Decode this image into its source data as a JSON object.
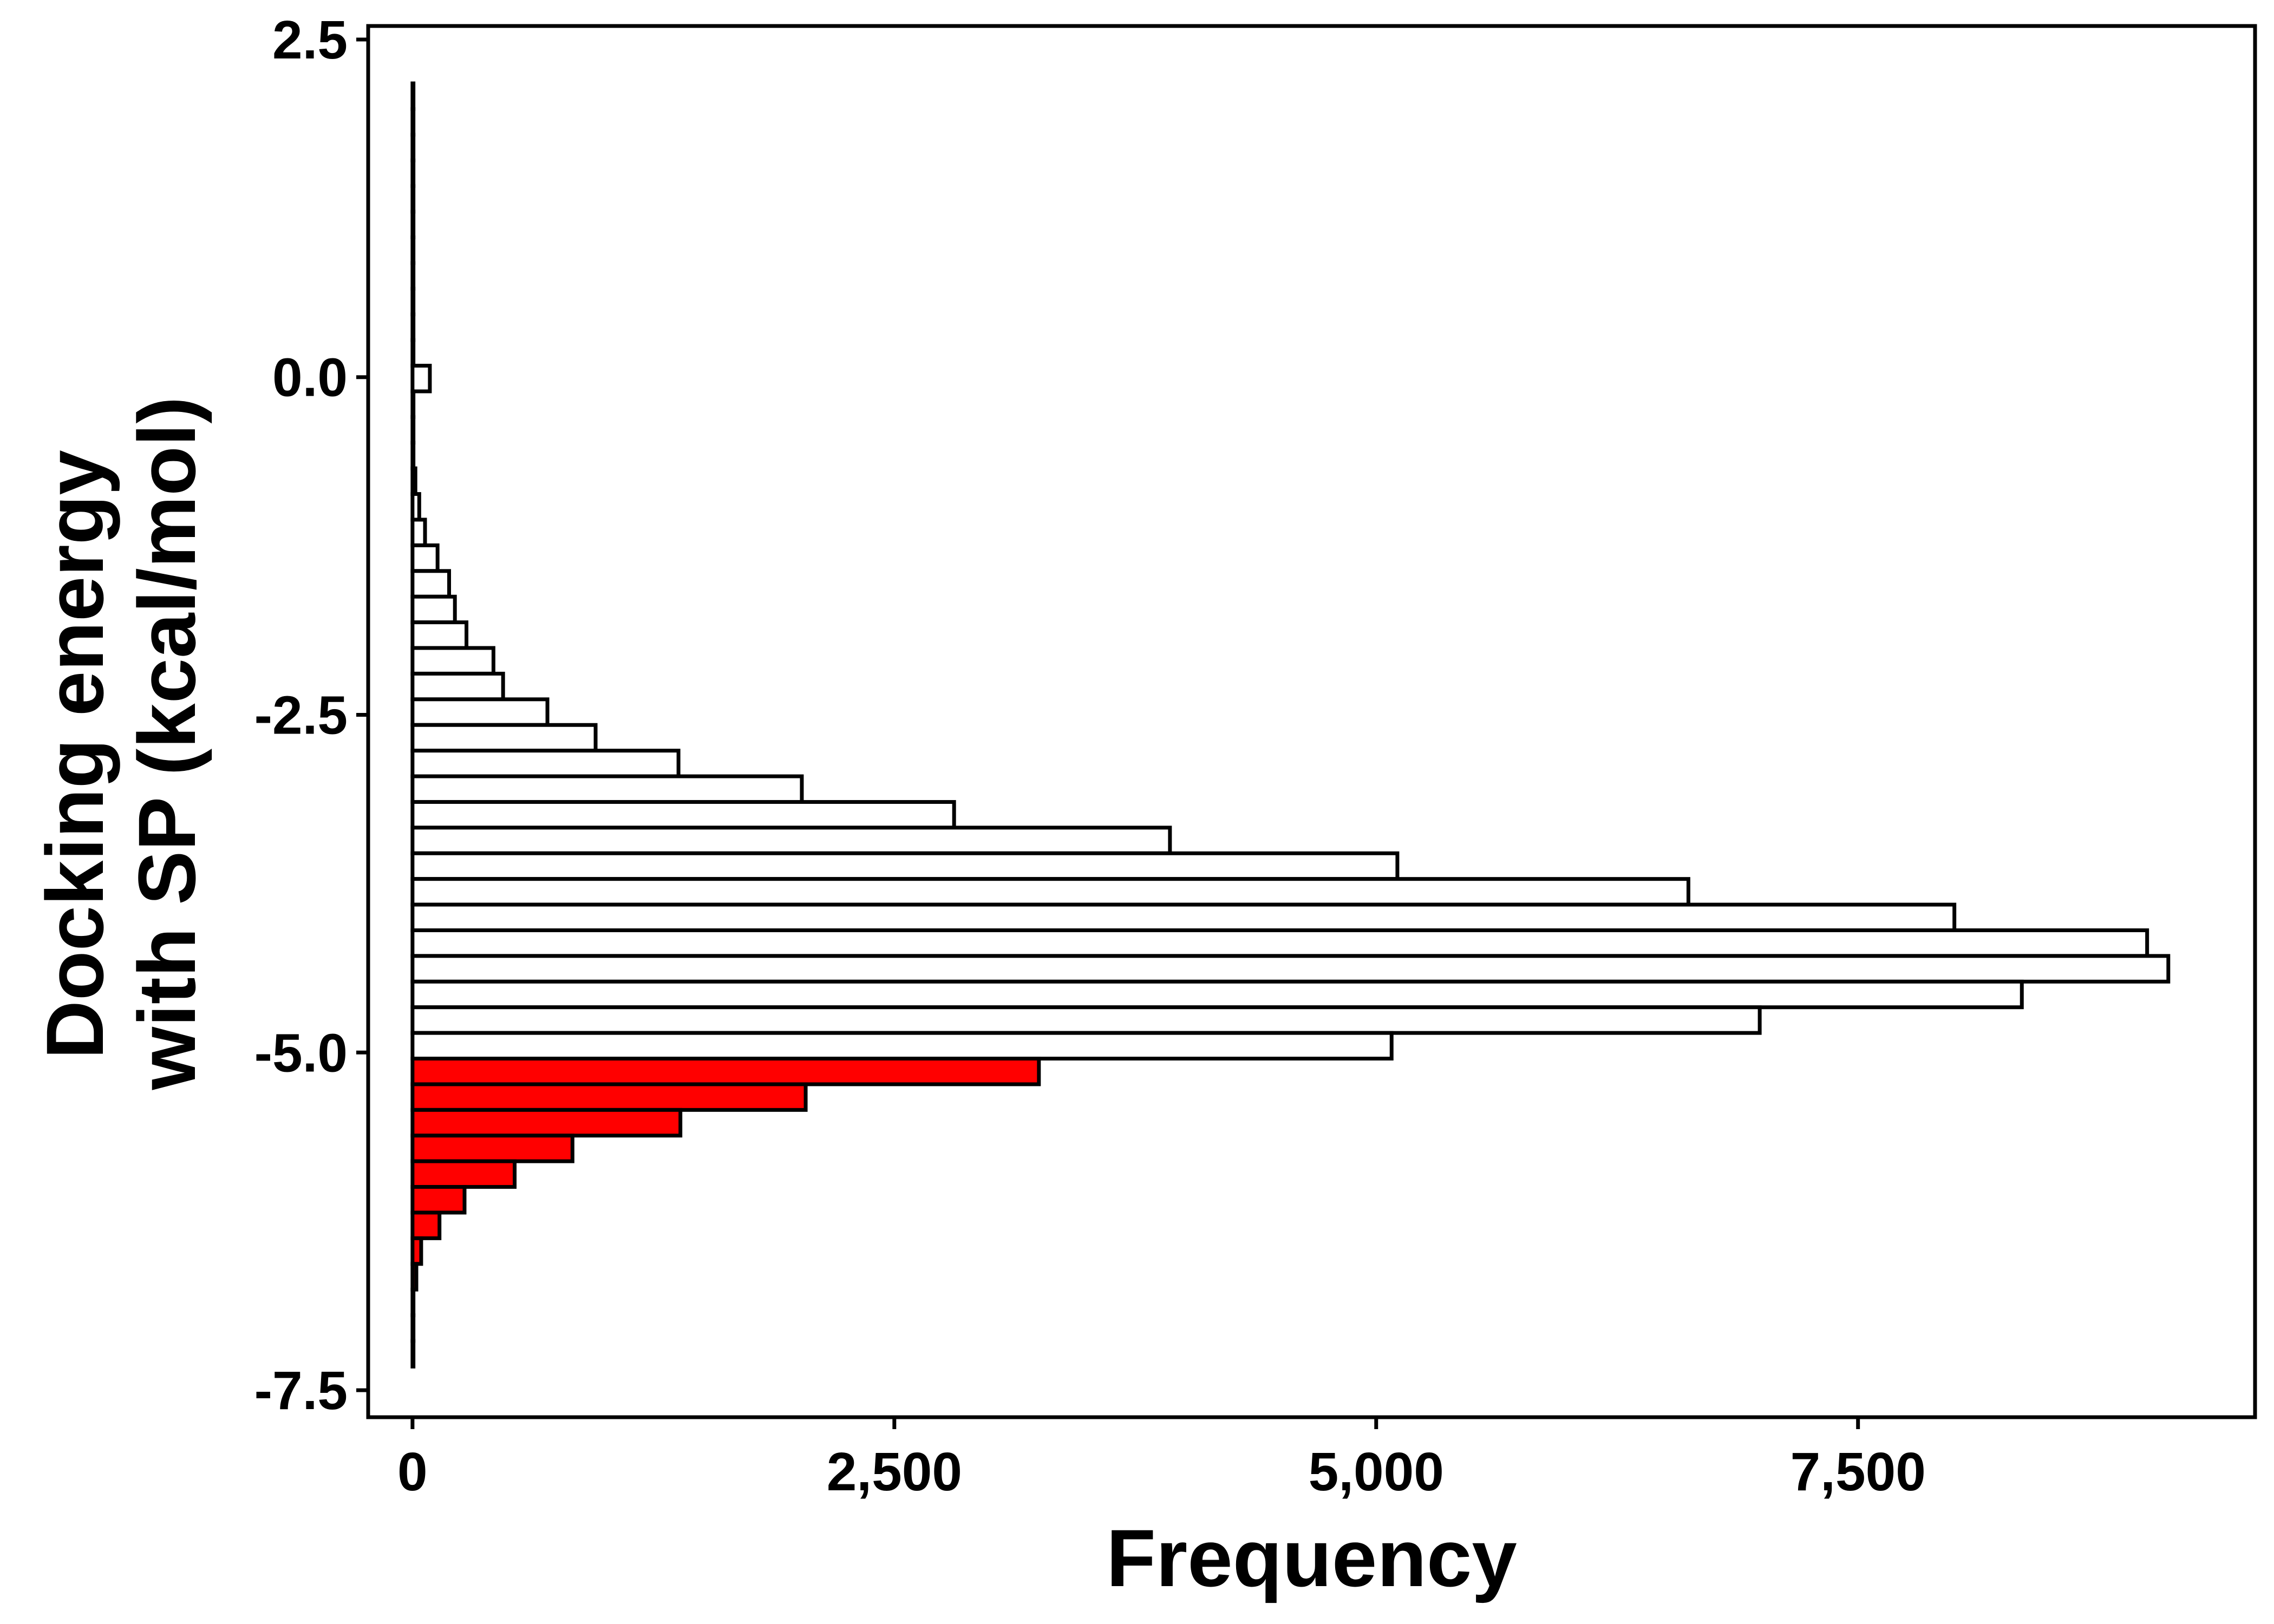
{
  "chart_data": {
    "type": "bar",
    "orientation": "horizontal",
    "xlabel": "Frequency",
    "ylabel_lines": [
      "Docking energy",
      "with SP (kcal/mol)"
    ],
    "xlim": [
      -230,
      9560
    ],
    "ylim": [
      -7.7,
      2.6
    ],
    "xticks": [
      0,
      2500,
      5000,
      7500
    ],
    "xtick_labels": [
      "0",
      "2,500",
      "5,000",
      "7,500"
    ],
    "yticks": [
      2.5,
      0.0,
      -2.5,
      -5.0,
      -7.5
    ],
    "ytick_labels": [
      "2.5",
      "0.0",
      "-2.5",
      "-5.0",
      "-7.5"
    ],
    "bin_width": 0.19,
    "highlight_threshold": -5.0,
    "colors": {
      "normal": "#ffffff",
      "highlight": "#ff0000",
      "stroke": "#000000"
    },
    "bins": [
      {
        "y": 2.08,
        "value": 5
      },
      {
        "y": 1.89,
        "value": 5
      },
      {
        "y": 1.7,
        "value": 5
      },
      {
        "y": 1.51,
        "value": 5
      },
      {
        "y": 1.32,
        "value": 5
      },
      {
        "y": 1.13,
        "value": 5
      },
      {
        "y": 0.94,
        "value": 5
      },
      {
        "y": 0.75,
        "value": 5
      },
      {
        "y": 0.56,
        "value": 5
      },
      {
        "y": 0.37,
        "value": 5
      },
      {
        "y": 0.18,
        "value": 5
      },
      {
        "y": -0.01,
        "value": 90
      },
      {
        "y": -0.2,
        "value": 5
      },
      {
        "y": -0.39,
        "value": 5
      },
      {
        "y": -0.58,
        "value": 5
      },
      {
        "y": -0.77,
        "value": 15
      },
      {
        "y": -0.96,
        "value": 35
      },
      {
        "y": -1.15,
        "value": 65
      },
      {
        "y": -1.34,
        "value": 130
      },
      {
        "y": -1.53,
        "value": 190
      },
      {
        "y": -1.72,
        "value": 220
      },
      {
        "y": -1.91,
        "value": 280
      },
      {
        "y": -2.1,
        "value": 420
      },
      {
        "y": -2.29,
        "value": 470
      },
      {
        "y": -2.48,
        "value": 700
      },
      {
        "y": -2.67,
        "value": 950
      },
      {
        "y": -2.86,
        "value": 1380
      },
      {
        "y": -3.05,
        "value": 2020
      },
      {
        "y": -3.24,
        "value": 2810
      },
      {
        "y": -3.43,
        "value": 3930
      },
      {
        "y": -3.62,
        "value": 5110
      },
      {
        "y": -3.81,
        "value": 6620
      },
      {
        "y": -4.0,
        "value": 8000
      },
      {
        "y": -4.19,
        "value": 9000
      },
      {
        "y": -4.38,
        "value": 9110
      },
      {
        "y": -4.57,
        "value": 8350
      },
      {
        "y": -4.76,
        "value": 6990
      },
      {
        "y": -4.95,
        "value": 5080
      },
      {
        "y": -5.14,
        "value": 3250
      },
      {
        "y": -5.33,
        "value": 2040
      },
      {
        "y": -5.52,
        "value": 1390
      },
      {
        "y": -5.71,
        "value": 830
      },
      {
        "y": -5.9,
        "value": 530
      },
      {
        "y": -6.09,
        "value": 270
      },
      {
        "y": -6.28,
        "value": 140
      },
      {
        "y": -6.47,
        "value": 45
      },
      {
        "y": -6.66,
        "value": 20
      },
      {
        "y": -6.85,
        "value": 5
      },
      {
        "y": -7.04,
        "value": 5
      },
      {
        "y": -7.23,
        "value": 5
      }
    ]
  }
}
